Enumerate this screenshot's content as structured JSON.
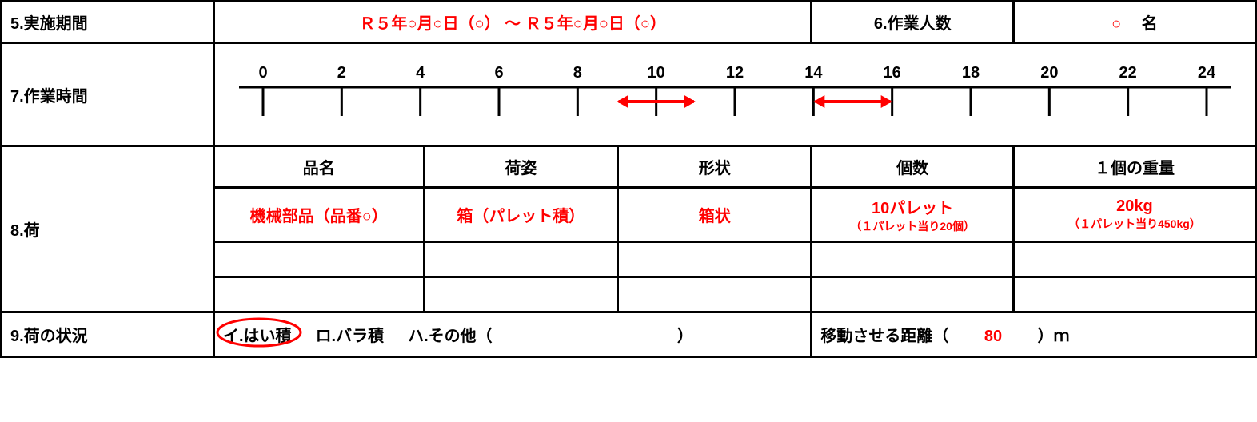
{
  "colors": {
    "red": "#ff0000",
    "black": "#000000",
    "border": "#000000",
    "bg": "#ffffff"
  },
  "row5": {
    "label": "5.実施期間",
    "period_from_prefix": "Ｒ５",
    "year_char": "年",
    "circle": "○",
    "month_char": "月",
    "day_char": "日",
    "paren_open": "（",
    "paren_close": "）",
    "tilde": "～",
    "period_full": "Ｒ５年○月○日（○） ～  Ｒ５年○月○日（○）"
  },
  "row6": {
    "label": "6.作業人数",
    "value_circle": "○",
    "unit": "名"
  },
  "row7": {
    "label": "7.作業時間",
    "timeline": {
      "ticks": [
        0,
        2,
        4,
        6,
        8,
        10,
        12,
        14,
        16,
        18,
        20,
        22,
        24
      ],
      "tick_fontsize": 20,
      "axis_color": "#000000",
      "axis_stroke_width": 3,
      "tick_height": 36,
      "arrow_ranges": [
        {
          "from": 9,
          "to": 11
        },
        {
          "from": 14,
          "to": 16
        }
      ],
      "arrow_color": "#ff0000",
      "arrow_stroke_width": 4
    }
  },
  "row8": {
    "label": "8.荷",
    "headers": {
      "name": "品名",
      "packing": "荷姿",
      "shape": "形状",
      "count": "個数",
      "unit_weight": "１個の重量"
    },
    "data": {
      "name": "機械部品（品番○）",
      "packing": "箱（パレット積）",
      "shape": "箱状",
      "count_main": "10パレット",
      "count_note": "（１パレット当り20個）",
      "weight_main": "20kg",
      "weight_note": "（１パレット当り450kg）"
    }
  },
  "row9": {
    "label": "9.荷の状況",
    "opt_a": "イ.はい積",
    "opt_b": "ロ.バラ積",
    "opt_c_prefix": "ハ.その他（",
    "opt_c_suffix": "）",
    "selected": "a",
    "distance_label_prefix": "移動させる距離（",
    "distance_value": "80",
    "distance_label_suffix": "）ｍ"
  }
}
